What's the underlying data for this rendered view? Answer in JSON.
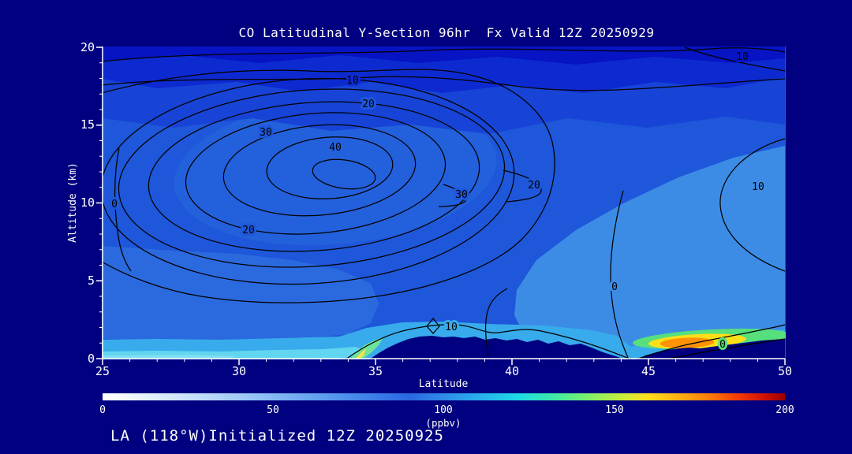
{
  "title": "CO Latitudinal Y-Section 96hr  Fx Valid 12Z 20250929",
  "footer": "LA (118°W)Initialized 12Z 20250925",
  "axes": {
    "x_label": "Latitude",
    "y_label": "Altitude (km)",
    "x_ticks": [
      "25",
      "30",
      "35",
      "40",
      "45",
      "50"
    ],
    "y_ticks": [
      "0",
      "5",
      "10",
      "15",
      "20"
    ]
  },
  "colorbar": {
    "tick_labels": [
      "0",
      "50",
      "100",
      "150",
      "200"
    ],
    "unit_label": "(ppbv)",
    "min": 0,
    "max": 200
  },
  "contour_labels": [
    {
      "text": "10"
    },
    {
      "text": "20"
    },
    {
      "text": "30"
    },
    {
      "text": "40"
    },
    {
      "text": "30"
    },
    {
      "text": "20"
    },
    {
      "text": "20"
    },
    {
      "text": "0"
    },
    {
      "text": "10"
    },
    {
      "text": "10"
    },
    {
      "text": "10"
    },
    {
      "text": "0"
    },
    {
      "text": "0"
    }
  ],
  "colors": {
    "background": "#000080",
    "text": "#ffffff",
    "contour_line": "#000000",
    "field_dark_blue": "#0614c4",
    "field_mid_blue": "#1e57da",
    "field_light_blue": "#3c8ce6",
    "field_cyan": "#38abec",
    "hotspot_green": "#58df7d",
    "hotspot_yellow": "#ffdf17",
    "hotspot_orange": "#ff9206",
    "terrain": "#000080"
  },
  "chart_data": {
    "type": "heatmap",
    "subtype": "filled-contour latitude-altitude cross section",
    "title": "CO Latitudinal Y-Section 96hr  Fx Valid 12Z 20250929",
    "xlabel": "Latitude",
    "ylabel": "Altitude (km)",
    "xlim": [
      25,
      50
    ],
    "ylim": [
      0,
      20
    ],
    "x_ticks": [
      25,
      30,
      35,
      40,
      45,
      50
    ],
    "y_ticks": [
      0,
      5,
      10,
      15,
      20
    ],
    "colorbar": {
      "label": "(ppbv)",
      "min": 0,
      "max": 200,
      "ticks": [
        0,
        50,
        100,
        150,
        200
      ]
    },
    "contour_levels_labeled": [
      0,
      10,
      20,
      30,
      40
    ],
    "contour_interval": 5,
    "contour_max": {
      "value": 45,
      "lat": 33.8,
      "altitude_km": 11.8
    },
    "terrain_silhouettes": [
      {
        "lat_range": [
          34.9,
          44.1
        ],
        "max_altitude_km": 1.5
      },
      {
        "lat_range": [
          44.7,
          50.0
        ],
        "max_altitude_km": 1.2
      }
    ],
    "surface_maximum": {
      "lat": 46.5,
      "altitude_km": 1.0,
      "value_ppbv_est": 175,
      "color": "orange"
    },
    "field_estimate_ppbv": {
      "lats": [
        25,
        30,
        35,
        40,
        45,
        50
      ],
      "alts_km": [
        0,
        2,
        5,
        10,
        15,
        20
      ],
      "values": [
        [
          115,
          120,
          null,
          110,
          135,
          150
        ],
        [
          100,
          105,
          108,
          100,
          95,
          92
        ],
        [
          85,
          90,
          95,
          88,
          80,
          78
        ],
        [
          88,
          95,
          100,
          90,
          78,
          75
        ],
        [
          88,
          92,
          95,
          88,
          82,
          78
        ],
        [
          82,
          85,
          88,
          85,
          80,
          75
        ]
      ],
      "note": "values estimated from fill colors against the 0-200 ppbv colorbar; null = below terrain"
    },
    "annotations": [
      "LA (118°W)Initialized 12Z 20250925"
    ],
    "legend_position": "bottom-colorbar",
    "grid": false
  }
}
